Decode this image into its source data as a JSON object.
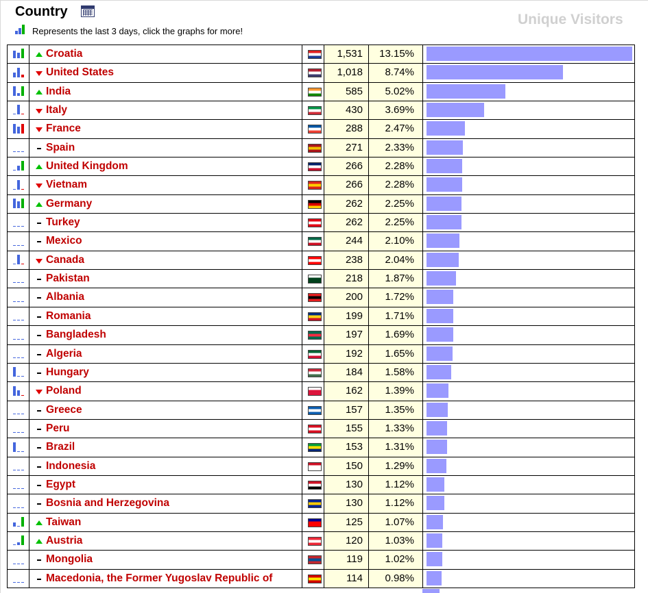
{
  "header": {
    "title": "Country",
    "note": "Represents the last 3 days, click the graphs for more!",
    "column_label": "Unique Visitors"
  },
  "icons": {
    "title_icon": "calendar-table-icon",
    "legend_icon": "bar-graph-icon"
  },
  "colors": {
    "bar": "#9a9aff",
    "value_cell_bg": "#ffffe0",
    "country_text": "#c00000",
    "trend_up": "#00c000",
    "trend_down": "#e00000"
  },
  "rows": [
    {
      "country": "Croatia",
      "trend": "up",
      "visitors": "1,531",
      "percent": "13.15%",
      "share": 13.15,
      "flag": [
        "#e02020",
        "#ffffff",
        "#1b3c94"
      ],
      "graph": [
        [
          0.8,
          "#4466dd"
        ],
        [
          0.6,
          "#4466dd"
        ],
        [
          1.0,
          "#00b000"
        ]
      ]
    },
    {
      "country": "United States",
      "trend": "down",
      "visitors": "1,018",
      "percent": "8.74%",
      "share": 8.74,
      "flag": [
        "#b22234",
        "#ffffff",
        "#3c3b6e"
      ],
      "graph": [
        [
          0.5,
          "#4466dd"
        ],
        [
          1.0,
          "#4466dd"
        ],
        [
          0.3,
          "#e00000"
        ]
      ]
    },
    {
      "country": "India",
      "trend": "up",
      "visitors": "585",
      "percent": "5.02%",
      "share": 5.02,
      "flag": [
        "#ff9933",
        "#ffffff",
        "#138808"
      ],
      "graph": [
        [
          1.0,
          "#4466dd"
        ],
        [
          0.3,
          "#4466dd"
        ],
        [
          1.0,
          "#00b000"
        ]
      ]
    },
    {
      "country": "Italy",
      "trend": "down",
      "visitors": "430",
      "percent": "3.69%",
      "share": 3.69,
      "flag": [
        "#009246",
        "#ffffff",
        "#ce2b37"
      ],
      "graph": [
        [
          0.1,
          "#4466dd"
        ],
        [
          1.0,
          "#4466dd"
        ],
        [
          0.1,
          "#e00000"
        ]
      ]
    },
    {
      "country": "France",
      "trend": "down",
      "visitors": "288",
      "percent": "2.47%",
      "share": 2.47,
      "flag": [
        "#0055a4",
        "#ffffff",
        "#ef4135"
      ],
      "graph": [
        [
          1.0,
          "#4466dd"
        ],
        [
          0.7,
          "#4466dd"
        ],
        [
          1.0,
          "#e00000"
        ]
      ]
    },
    {
      "country": "Spain",
      "trend": "same",
      "visitors": "271",
      "percent": "2.33%",
      "share": 2.33,
      "flag": [
        "#aa151b",
        "#f1bf00",
        "#aa151b"
      ],
      "graph": [
        [
          0.1,
          "#4466dd"
        ],
        [
          0.1,
          "#4466dd"
        ],
        [
          0.1,
          "#4466dd"
        ]
      ]
    },
    {
      "country": "United Kingdom",
      "trend": "up",
      "visitors": "266",
      "percent": "2.28%",
      "share": 2.28,
      "flag": [
        "#012169",
        "#ffffff",
        "#c8102e"
      ],
      "graph": [
        [
          0.1,
          "#4466dd"
        ],
        [
          0.5,
          "#4466dd"
        ],
        [
          1.0,
          "#00b000"
        ]
      ]
    },
    {
      "country": "Vietnam",
      "trend": "down",
      "visitors": "266",
      "percent": "2.28%",
      "share": 2.28,
      "flag": [
        "#da251d",
        "#ffcd00",
        "#da251d"
      ],
      "graph": [
        [
          0.1,
          "#4466dd"
        ],
        [
          1.0,
          "#4466dd"
        ],
        [
          0.1,
          "#e00000"
        ]
      ]
    },
    {
      "country": "Germany",
      "trend": "up",
      "visitors": "262",
      "percent": "2.25%",
      "share": 2.25,
      "flag": [
        "#000000",
        "#dd0000",
        "#ffce00"
      ],
      "graph": [
        [
          1.0,
          "#4466dd"
        ],
        [
          0.7,
          "#4466dd"
        ],
        [
          1.0,
          "#00b000"
        ]
      ]
    },
    {
      "country": "Turkey",
      "trend": "same",
      "visitors": "262",
      "percent": "2.25%",
      "share": 2.25,
      "flag": [
        "#e30a17",
        "#ffffff",
        "#e30a17"
      ],
      "graph": [
        [
          0.1,
          "#4466dd"
        ],
        [
          0.1,
          "#4466dd"
        ],
        [
          0.1,
          "#4466dd"
        ]
      ]
    },
    {
      "country": "Mexico",
      "trend": "same",
      "visitors": "244",
      "percent": "2.10%",
      "share": 2.1,
      "flag": [
        "#006847",
        "#ffffff",
        "#ce1126"
      ],
      "graph": [
        [
          0.1,
          "#4466dd"
        ],
        [
          0.1,
          "#4466dd"
        ],
        [
          0.1,
          "#4466dd"
        ]
      ]
    },
    {
      "country": "Canada",
      "trend": "down",
      "visitors": "238",
      "percent": "2.04%",
      "share": 2.04,
      "flag": [
        "#ff0000",
        "#ffffff",
        "#ff0000"
      ],
      "graph": [
        [
          0.1,
          "#4466dd"
        ],
        [
          1.0,
          "#4466dd"
        ],
        [
          0.1,
          "#e00000"
        ]
      ]
    },
    {
      "country": "Pakistan",
      "trend": "same",
      "visitors": "218",
      "percent": "1.87%",
      "share": 1.87,
      "flag": [
        "#ffffff",
        "#01411c",
        "#01411c"
      ],
      "graph": [
        [
          0.1,
          "#4466dd"
        ],
        [
          0.1,
          "#4466dd"
        ],
        [
          0.1,
          "#4466dd"
        ]
      ]
    },
    {
      "country": "Albania",
      "trend": "same",
      "visitors": "200",
      "percent": "1.72%",
      "share": 1.72,
      "flag": [
        "#e41e20",
        "#000000",
        "#e41e20"
      ],
      "graph": [
        [
          0.1,
          "#4466dd"
        ],
        [
          0.1,
          "#4466dd"
        ],
        [
          0.1,
          "#4466dd"
        ]
      ]
    },
    {
      "country": "Romania",
      "trend": "same",
      "visitors": "199",
      "percent": "1.71%",
      "share": 1.71,
      "flag": [
        "#002b7f",
        "#fcd116",
        "#ce1126"
      ],
      "graph": [
        [
          0.1,
          "#4466dd"
        ],
        [
          0.1,
          "#4466dd"
        ],
        [
          0.1,
          "#4466dd"
        ]
      ]
    },
    {
      "country": "Bangladesh",
      "trend": "same",
      "visitors": "197",
      "percent": "1.69%",
      "share": 1.69,
      "flag": [
        "#006a4e",
        "#f42a41",
        "#006a4e"
      ],
      "graph": [
        [
          0.1,
          "#4466dd"
        ],
        [
          0.1,
          "#4466dd"
        ],
        [
          0.1,
          "#4466dd"
        ]
      ]
    },
    {
      "country": "Algeria",
      "trend": "same",
      "visitors": "192",
      "percent": "1.65%",
      "share": 1.65,
      "flag": [
        "#006233",
        "#ffffff",
        "#d21034"
      ],
      "graph": [
        [
          0.1,
          "#4466dd"
        ],
        [
          0.1,
          "#4466dd"
        ],
        [
          0.1,
          "#4466dd"
        ]
      ]
    },
    {
      "country": "Hungary",
      "trend": "same",
      "visitors": "184",
      "percent": "1.58%",
      "share": 1.58,
      "flag": [
        "#cd2a3e",
        "#ffffff",
        "#436f4d"
      ],
      "graph": [
        [
          1.0,
          "#4466dd"
        ],
        [
          0.1,
          "#4466dd"
        ],
        [
          0.1,
          "#4466dd"
        ]
      ]
    },
    {
      "country": "Poland",
      "trend": "down",
      "visitors": "162",
      "percent": "1.39%",
      "share": 1.39,
      "flag": [
        "#ffffff",
        "#dc143c",
        "#dc143c"
      ],
      "graph": [
        [
          1.0,
          "#4466dd"
        ],
        [
          0.6,
          "#4466dd"
        ],
        [
          0.1,
          "#e00000"
        ]
      ]
    },
    {
      "country": "Greece",
      "trend": "same",
      "visitors": "157",
      "percent": "1.35%",
      "share": 1.35,
      "flag": [
        "#0d5eaf",
        "#ffffff",
        "#0d5eaf"
      ],
      "graph": [
        [
          0.1,
          "#4466dd"
        ],
        [
          0.1,
          "#4466dd"
        ],
        [
          0.1,
          "#4466dd"
        ]
      ]
    },
    {
      "country": "Peru",
      "trend": "same",
      "visitors": "155",
      "percent": "1.33%",
      "share": 1.33,
      "flag": [
        "#d91023",
        "#ffffff",
        "#d91023"
      ],
      "graph": [
        [
          0.1,
          "#4466dd"
        ],
        [
          0.1,
          "#4466dd"
        ],
        [
          0.1,
          "#4466dd"
        ]
      ]
    },
    {
      "country": "Brazil",
      "trend": "same",
      "visitors": "153",
      "percent": "1.31%",
      "share": 1.31,
      "flag": [
        "#009c3b",
        "#ffdf00",
        "#002776"
      ],
      "graph": [
        [
          1.0,
          "#4466dd"
        ],
        [
          0.1,
          "#4466dd"
        ],
        [
          0.1,
          "#4466dd"
        ]
      ]
    },
    {
      "country": "Indonesia",
      "trend": "same",
      "visitors": "150",
      "percent": "1.29%",
      "share": 1.29,
      "flag": [
        "#ce1126",
        "#ffffff",
        "#ffffff"
      ],
      "graph": [
        [
          0.1,
          "#4466dd"
        ],
        [
          0.1,
          "#4466dd"
        ],
        [
          0.1,
          "#4466dd"
        ]
      ]
    },
    {
      "country": "Egypt",
      "trend": "same",
      "visitors": "130",
      "percent": "1.12%",
      "share": 1.12,
      "flag": [
        "#ce1126",
        "#ffffff",
        "#000000"
      ],
      "graph": [
        [
          0.1,
          "#4466dd"
        ],
        [
          0.1,
          "#4466dd"
        ],
        [
          0.1,
          "#4466dd"
        ]
      ]
    },
    {
      "country": "Bosnia and Herzegovina",
      "trend": "same",
      "visitors": "130",
      "percent": "1.12%",
      "share": 1.12,
      "flag": [
        "#002395",
        "#fecb00",
        "#002395"
      ],
      "graph": [
        [
          0.1,
          "#4466dd"
        ],
        [
          0.1,
          "#4466dd"
        ],
        [
          0.1,
          "#4466dd"
        ]
      ]
    },
    {
      "country": "Taiwan",
      "trend": "up",
      "visitors": "125",
      "percent": "1.07%",
      "share": 1.07,
      "flag": [
        "#000095",
        "#fe0000",
        "#fe0000"
      ],
      "graph": [
        [
          0.4,
          "#4466dd"
        ],
        [
          0.1,
          "#4466dd"
        ],
        [
          1.0,
          "#00b000"
        ]
      ]
    },
    {
      "country": "Austria",
      "trend": "up",
      "visitors": "120",
      "percent": "1.03%",
      "share": 1.03,
      "flag": [
        "#ed2939",
        "#ffffff",
        "#ed2939"
      ],
      "graph": [
        [
          0.1,
          "#4466dd"
        ],
        [
          0.3,
          "#4466dd"
        ],
        [
          1.0,
          "#00b000"
        ]
      ]
    },
    {
      "country": "Mongolia",
      "trend": "same",
      "visitors": "119",
      "percent": "1.02%",
      "share": 1.02,
      "flag": [
        "#c4272f",
        "#015197",
        "#c4272f"
      ],
      "graph": [
        [
          0.1,
          "#4466dd"
        ],
        [
          0.1,
          "#4466dd"
        ],
        [
          0.1,
          "#4466dd"
        ]
      ]
    },
    {
      "country": "Macedonia, the Former Yugoslav Republic of",
      "trend": "same",
      "visitors": "114",
      "percent": "0.98%",
      "share": 0.98,
      "flag": [
        "#d20000",
        "#ffe600",
        "#d20000"
      ],
      "graph": [
        [
          0.1,
          "#4466dd"
        ],
        [
          0.1,
          "#4466dd"
        ],
        [
          0.1,
          "#4466dd"
        ]
      ]
    }
  ]
}
